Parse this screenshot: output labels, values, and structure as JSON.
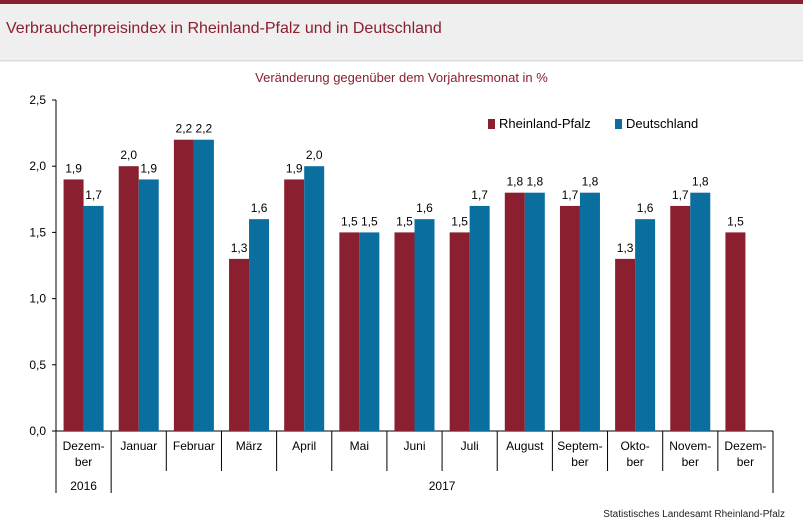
{
  "header": {
    "title": "Verbraucherpreisindex in Rheinland-Pfalz und in Deutschland"
  },
  "footer": {
    "source": "Statistisches Landesamt Rheinland-Pfalz"
  },
  "chart_data": {
    "type": "bar",
    "title": "Veränderung gegenüber dem Vorjahresmonat in %",
    "categories": [
      [
        "Dezem-",
        "ber"
      ],
      [
        "Januar"
      ],
      [
        "Februar"
      ],
      [
        "März"
      ],
      [
        "April"
      ],
      [
        "Mai"
      ],
      [
        "Juni"
      ],
      [
        "Juli"
      ],
      [
        "August"
      ],
      [
        "Septem-",
        "ber"
      ],
      [
        "Okto-",
        "ber"
      ],
      [
        "Novem-",
        "ber"
      ],
      [
        "Dezem-",
        "ber"
      ]
    ],
    "year_groups": [
      {
        "label": "2016",
        "start": 0,
        "end": 0
      },
      {
        "label": "2017",
        "start": 1,
        "end": 12
      }
    ],
    "series": [
      {
        "name": "Rheinland-Pfalz",
        "color": "#8a1f2f",
        "values": [
          1.9,
          2.0,
          2.2,
          1.3,
          1.9,
          1.5,
          1.5,
          1.5,
          1.8,
          1.7,
          1.3,
          1.7,
          1.5
        ],
        "labels": [
          "1,9",
          "2,0",
          "2,2",
          "1,3",
          "1,9",
          "1,5",
          "1,5",
          "1,5",
          "1,8",
          "1,7",
          "1,3",
          "1,7",
          "1,5"
        ]
      },
      {
        "name": "Deutschland",
        "color": "#0a6e9e",
        "values": [
          1.7,
          1.9,
          2.2,
          1.6,
          2.0,
          1.5,
          1.6,
          1.7,
          1.8,
          1.8,
          1.6,
          1.8,
          null
        ],
        "labels": [
          "1,7",
          "1,9",
          "2,2",
          "1,6",
          "2,0",
          "1,5",
          "1,6",
          "1,7",
          "1,8",
          "1,8",
          "1,6",
          "1,8",
          ""
        ]
      }
    ],
    "ylim": [
      0,
      2.5
    ],
    "yticks": [
      0,
      0.5,
      1.0,
      1.5,
      2.0,
      2.5
    ],
    "ytick_labels": [
      "0,0",
      "0,5",
      "1,0",
      "1,5",
      "2,0",
      "2,5"
    ],
    "legend_position": "top-right",
    "grid": false
  }
}
